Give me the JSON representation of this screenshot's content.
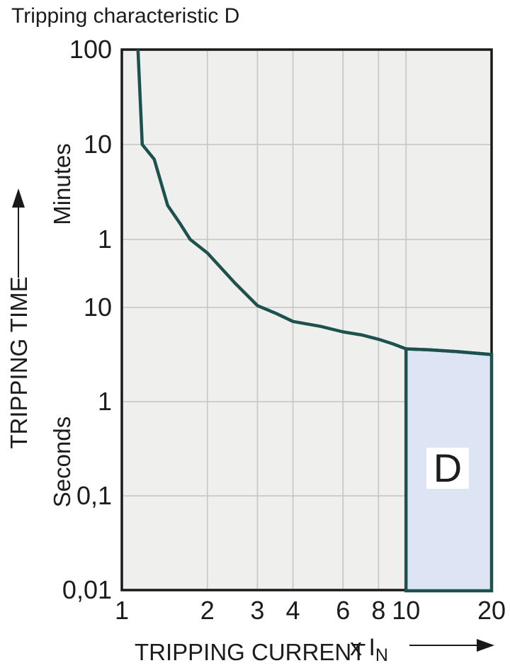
{
  "title": "Tripping characteristic D",
  "chart_data": {
    "type": "line",
    "title": "Tripping characteristic D",
    "x_axis": {
      "label": "TRIPPING CURRENT",
      "unit_prefix": "x I",
      "unit_subscript": "N",
      "scale": "log",
      "range": [
        1,
        20
      ],
      "ticks": [
        1,
        2,
        3,
        4,
        6,
        8,
        10,
        20
      ]
    },
    "y_axis": {
      "label": "TRIPPING TIME",
      "scale": "log",
      "unit_bands": [
        {
          "label": "Minutes"
        },
        {
          "label": "Seconds"
        }
      ],
      "ticks": [
        {
          "label": "100",
          "seconds": 6000
        },
        {
          "label": "10",
          "seconds": 600
        },
        {
          "label": "1",
          "seconds": 60
        },
        {
          "label": "10",
          "seconds": 10
        },
        {
          "label": "1",
          "seconds": 1
        },
        {
          "label": "0,1",
          "seconds": 0.1
        },
        {
          "label": "0,01",
          "seconds": 0.01
        }
      ]
    },
    "grid": {
      "x_lines": [
        2,
        3,
        4,
        6,
        8,
        10
      ],
      "y_lines_seconds": [
        600,
        60,
        10,
        1,
        0.1
      ]
    },
    "series": [
      {
        "name": "tripping-curve",
        "color": "#1d514e",
        "points": [
          [
            1.14,
            6000
          ],
          [
            1.18,
            600
          ],
          [
            1.3,
            420
          ],
          [
            1.45,
            137
          ],
          [
            1.6,
            89
          ],
          [
            1.74,
            60
          ],
          [
            2,
            42
          ],
          [
            2.5,
            19
          ],
          [
            3,
            10.5
          ],
          [
            3.5,
            8.6
          ],
          [
            4,
            7.1
          ],
          [
            5,
            6.3
          ],
          [
            6,
            5.5
          ],
          [
            7,
            5.1
          ],
          [
            8,
            4.6
          ],
          [
            9,
            4.1
          ],
          [
            10,
            3.63
          ],
          [
            12,
            3.55
          ],
          [
            15,
            3.4
          ],
          [
            20,
            3.16
          ]
        ]
      }
    ],
    "region": {
      "label": "D",
      "x_range": [
        10,
        20
      ],
      "t_bottom": 0.01,
      "fill": "#dde4f3",
      "stroke": "#1d514e"
    },
    "colors": {
      "plot_bg": "#efefee",
      "grid": "#c9c9c9",
      "frame": "#1a1a1a",
      "curve": "#1d514e",
      "region_fill": "#dde4f3",
      "label_bg": "#ffffff",
      "text": "#1c1c1c"
    }
  }
}
